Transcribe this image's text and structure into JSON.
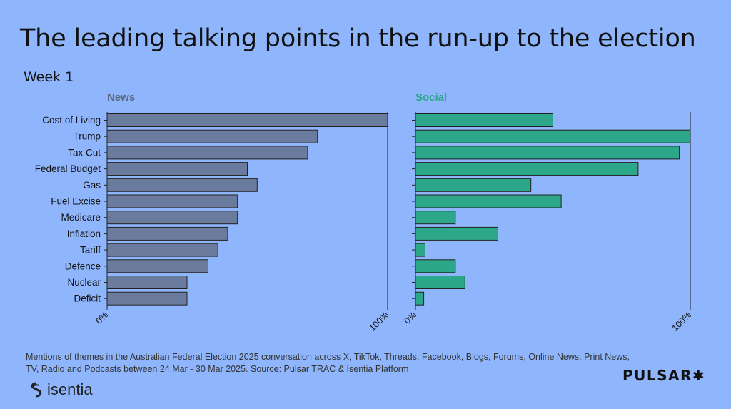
{
  "title": "The leading talking points in the run-up to the election",
  "subtitle": "Week 1",
  "footnote": "Mentions of themes in the Australian Federal Election 2025 conversation across X, TikTok, Threads, Facebook, Blogs, Forums, Online News, Print News, TV, Radio and Podcasts between 24 Mar - 30 Mar 2025. Source: Pulsar TRAC & Isentia Platform",
  "logos": {
    "isentia": "isentia",
    "pulsar": "PULSAR✱"
  },
  "colors": {
    "news": "#6b7b9e",
    "social": "#2ca789",
    "news_label": "#5a6882",
    "social_label": "#2ca789"
  },
  "chart_data": [
    {
      "type": "bar",
      "orientation": "horizontal",
      "title": "News",
      "categories": [
        "Cost of Living",
        "Trump",
        "Tax Cut",
        "Federal Budget",
        "Gas",
        "Fuel Excise",
        "Medicare",
        "Inflation",
        "Tariff",
        "Defence",
        "Nuclear",
        "Deficit"
      ],
      "values": [
        100,
        75,
        71.5,
        50,
        53.5,
        46.5,
        46.5,
        43,
        39.5,
        36,
        28.5,
        28.5
      ],
      "xlim": [
        0,
        100
      ],
      "xticks": [
        "0%",
        "100%"
      ]
    },
    {
      "type": "bar",
      "orientation": "horizontal",
      "title": "Social",
      "categories": [
        "Cost of Living",
        "Trump",
        "Tax Cut",
        "Federal Budget",
        "Gas",
        "Fuel Excise",
        "Medicare",
        "Inflation",
        "Tariff",
        "Defence",
        "Nuclear",
        "Deficit"
      ],
      "values": [
        50,
        100,
        96,
        81,
        42,
        53,
        14.5,
        30,
        3.5,
        14.5,
        18,
        3
      ],
      "xlim": [
        0,
        100
      ],
      "xticks": [
        "0%",
        "100%"
      ]
    }
  ]
}
